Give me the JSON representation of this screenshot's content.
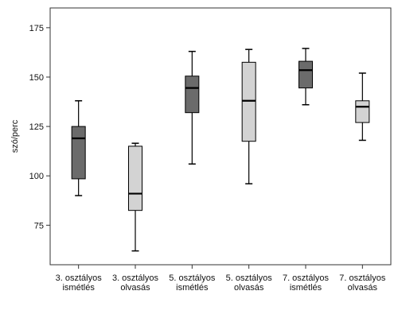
{
  "chart_data": {
    "type": "boxplot",
    "title": "",
    "xlabel": "",
    "ylabel": "szó/perc",
    "ylim": [
      55,
      185
    ],
    "yticks": [
      75,
      100,
      125,
      150,
      175
    ],
    "grid": false,
    "categories": [
      [
        "3. osztályos",
        "ismétlés"
      ],
      [
        "3. osztályos",
        "olvasás"
      ],
      [
        "5. osztályos",
        "ismétlés"
      ],
      [
        "5. osztályos",
        "olvasás"
      ],
      [
        "7. osztályos",
        "ismétlés"
      ],
      [
        "7. osztályos",
        "olvasás"
      ]
    ],
    "boxes": [
      {
        "min": 90,
        "q1": 98.5,
        "median": 119,
        "q3": 125,
        "max": 138,
        "color": "#6b6b6b"
      },
      {
        "min": 62,
        "q1": 82.5,
        "median": 91,
        "q3": 115,
        "max": 116.5,
        "color": "#d3d3d3"
      },
      {
        "min": 106,
        "q1": 132,
        "median": 144.5,
        "q3": 150.5,
        "max": 163,
        "color": "#6b6b6b"
      },
      {
        "min": 96,
        "q1": 117.5,
        "median": 138,
        "q3": 157.5,
        "max": 164,
        "color": "#d3d3d3"
      },
      {
        "min": 136,
        "q1": 144.5,
        "median": 153.5,
        "q3": 158,
        "max": 164.5,
        "color": "#6b6b6b"
      },
      {
        "min": 118,
        "q1": 127,
        "median": 135,
        "q3": 138,
        "max": 152,
        "color": "#d3d3d3"
      }
    ]
  }
}
